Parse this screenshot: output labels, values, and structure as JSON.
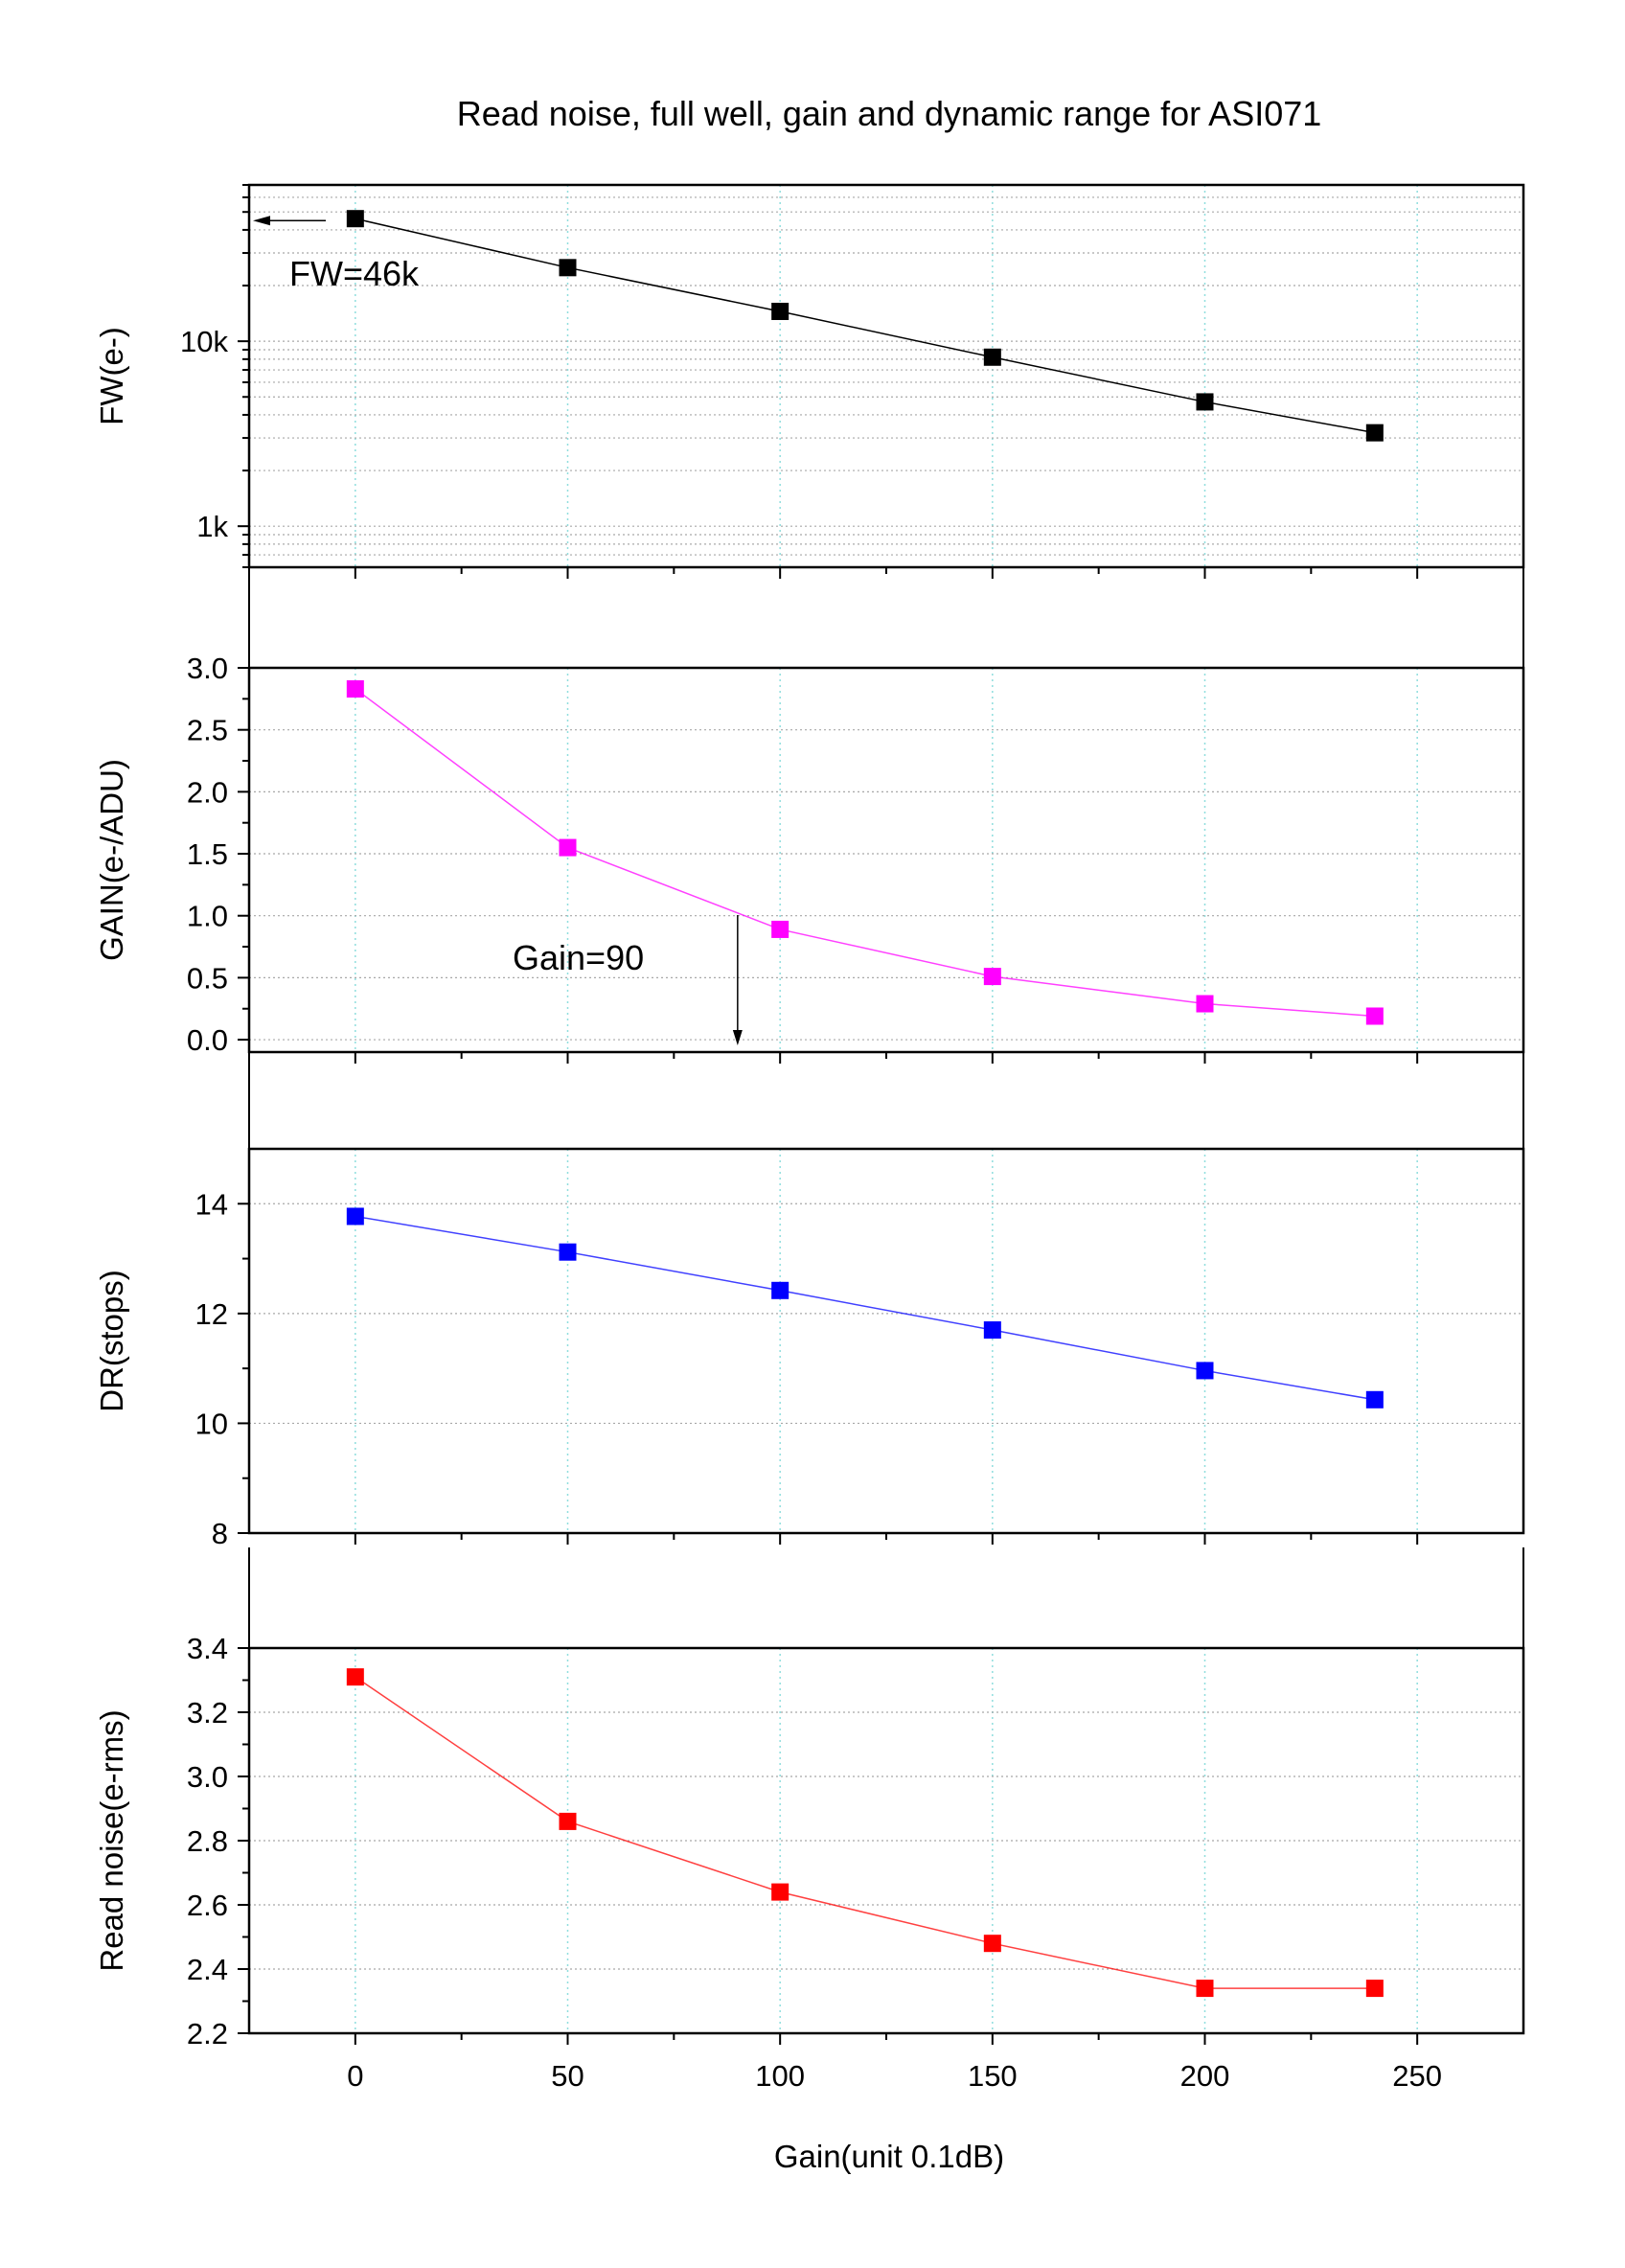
{
  "chart_data": {
    "type": "line",
    "title": "Read noise, full well, gain and dynamic range for ASI071",
    "xlabel": "Gain(unit 0.1dB)",
    "xlim": [
      -25,
      275
    ],
    "x_ticks": [
      0,
      50,
      100,
      150,
      200,
      250
    ],
    "x_tick_labels": [
      "0",
      "50",
      "100",
      "150",
      "200",
      "250"
    ],
    "grid": true,
    "panels": [
      {
        "id": "fw",
        "ylabel": "FW(e-)",
        "yscale": "log",
        "ylim": [
          600,
          70000
        ],
        "y_ticks": [
          1000,
          10000
        ],
        "y_tick_labels": [
          "1k",
          "10k"
        ],
        "color": "#000000",
        "x": [
          0,
          50,
          100,
          150,
          200,
          240
        ],
        "values": [
          46000,
          25000,
          14500,
          8200,
          4700,
          3200
        ],
        "annotations": [
          {
            "text": "FW=46k",
            "arrow": "left"
          }
        ]
      },
      {
        "id": "gain",
        "ylabel": "GAIN(e-/ADU)",
        "yscale": "linear",
        "ylim": [
          -0.1,
          3.0
        ],
        "y_ticks": [
          0.0,
          0.5,
          1.0,
          1.5,
          2.0,
          2.5,
          3.0
        ],
        "y_tick_labels": [
          "0.0",
          "0.5",
          "1.0",
          "1.5",
          "2.0",
          "2.5",
          "3.0"
        ],
        "color": "#ff00ff",
        "x": [
          0,
          50,
          100,
          150,
          200,
          240
        ],
        "values": [
          2.83,
          1.55,
          0.89,
          0.51,
          0.29,
          0.19
        ],
        "annotations": [
          {
            "text": "Gain=90",
            "arrow": "down",
            "x": 90
          }
        ]
      },
      {
        "id": "dr",
        "ylabel": "DR(stops)",
        "yscale": "linear",
        "ylim": [
          8,
          15
        ],
        "y_ticks": [
          8,
          10,
          12,
          14
        ],
        "y_tick_labels": [
          "8",
          "10",
          "12",
          "14"
        ],
        "color": "#0000ff",
        "x": [
          0,
          50,
          100,
          150,
          200,
          240
        ],
        "values": [
          13.77,
          13.12,
          12.42,
          11.7,
          10.96,
          10.43
        ],
        "annotations": []
      },
      {
        "id": "rn",
        "ylabel": "Read noise(e-rms)",
        "yscale": "linear",
        "ylim": [
          2.2,
          3.4
        ],
        "y_ticks": [
          2.2,
          2.4,
          2.6,
          2.8,
          3.0,
          3.2,
          3.4
        ],
        "y_tick_labels": [
          "2.2",
          "2.4",
          "2.6",
          "2.8",
          "3.0",
          "3.2",
          "3.4"
        ],
        "color": "#ff0000",
        "x": [
          0,
          50,
          100,
          150,
          200,
          240
        ],
        "values": [
          3.31,
          2.86,
          2.64,
          2.48,
          2.34,
          2.34
        ],
        "annotations": []
      }
    ]
  }
}
